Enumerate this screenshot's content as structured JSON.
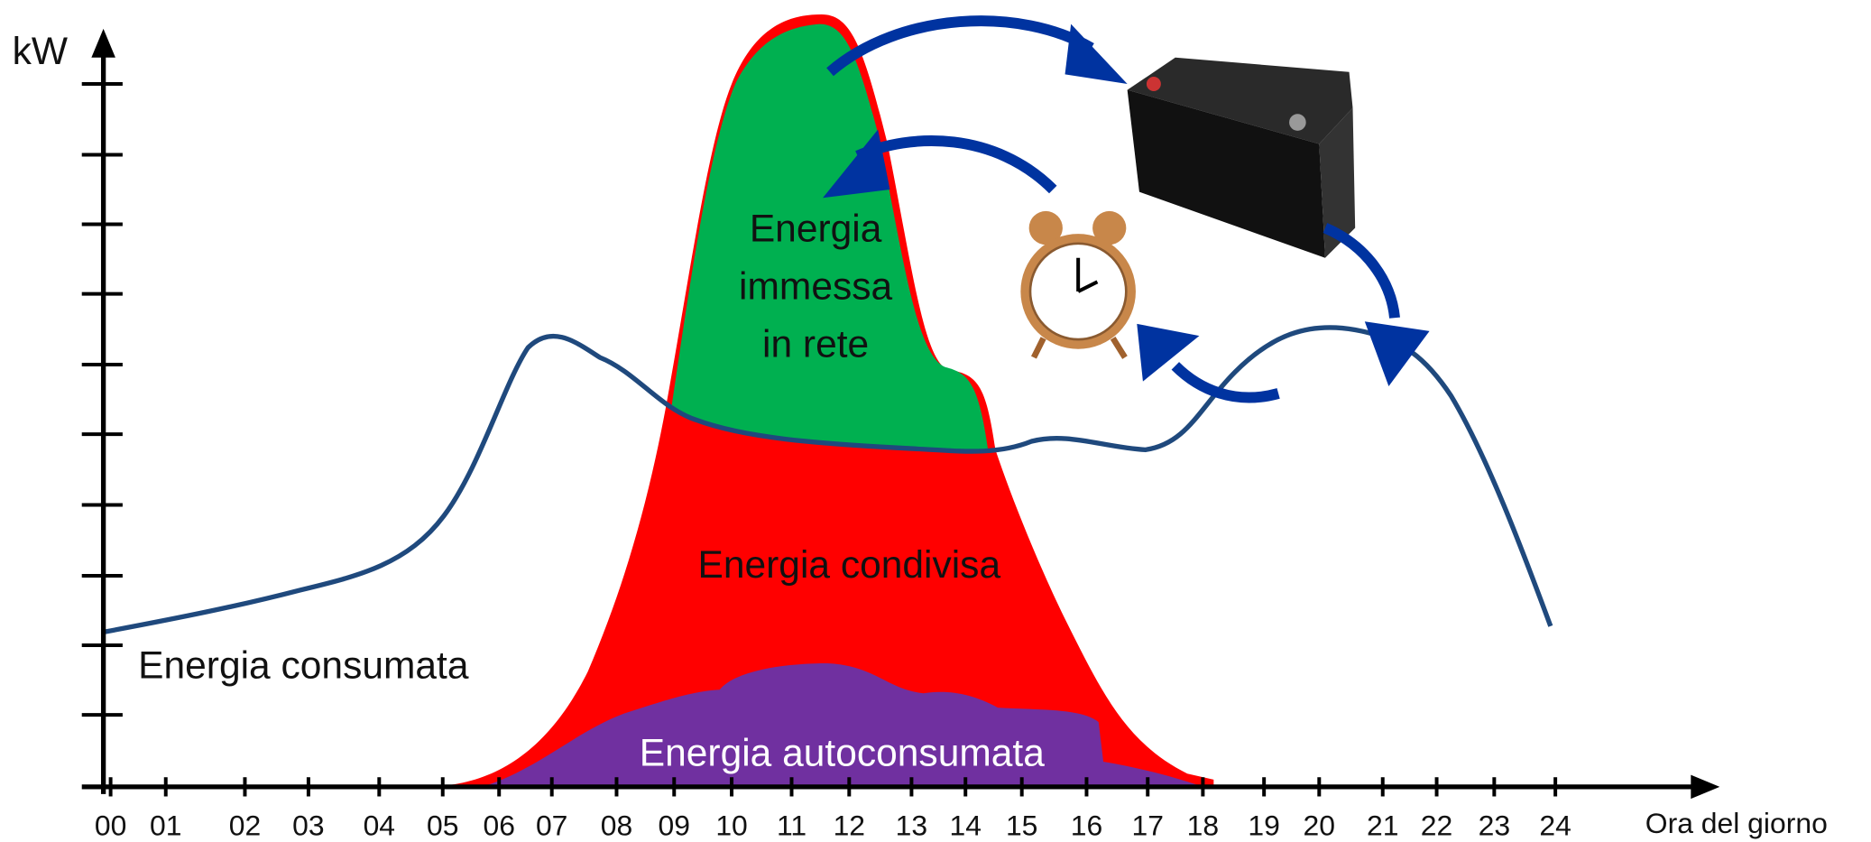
{
  "y_axis": {
    "label": "kW"
  },
  "x_axis": {
    "label": "Ora del giorno",
    "hours": [
      "00",
      "01",
      "02",
      "03",
      "04",
      "05",
      "06",
      "07",
      "08",
      "09",
      "10",
      "11",
      "12",
      "13",
      "14",
      "15",
      "16",
      "17",
      "18",
      "19",
      "20",
      "21",
      "22",
      "23",
      "24"
    ]
  },
  "regions": {
    "consumed": "Energia consumata",
    "shared": "Energia condivisa",
    "self_consumed": "Energia autoconsumata",
    "fed_in": [
      "Energia",
      "immessa",
      "in rete"
    ]
  }
}
